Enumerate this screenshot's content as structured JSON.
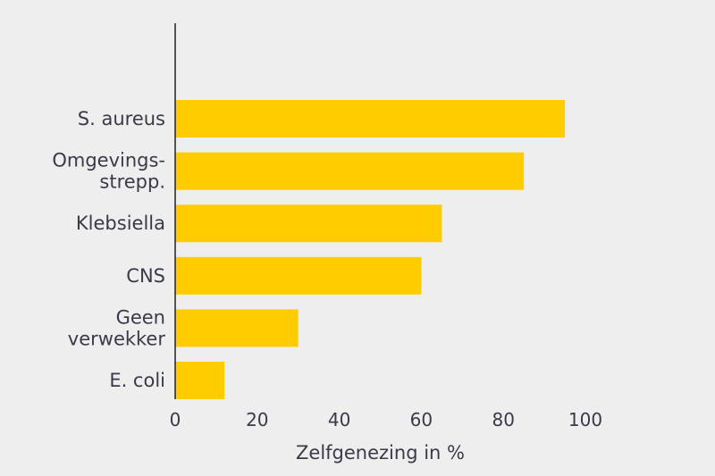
{
  "chart_data": {
    "type": "bar",
    "orientation": "horizontal",
    "categories": [
      [
        "S. aureus"
      ],
      [
        "Omgevings-",
        "strepp."
      ],
      [
        "Klebsiella"
      ],
      [
        "CNS"
      ],
      [
        "Geen",
        "verwekker"
      ],
      [
        "E. coli"
      ]
    ],
    "values": [
      95,
      85,
      65,
      60,
      30,
      12
    ],
    "xlabel": "Zelfgenezing in %",
    "ylabel": "",
    "xlim": [
      0,
      100
    ],
    "xticks": [
      "0",
      "20",
      "40",
      "60",
      "80",
      "100"
    ],
    "grid": false,
    "bar_color": "#ffcc00",
    "axis_color": "#222222",
    "text_color": "#3a3a48",
    "background": "#eeeeee"
  }
}
